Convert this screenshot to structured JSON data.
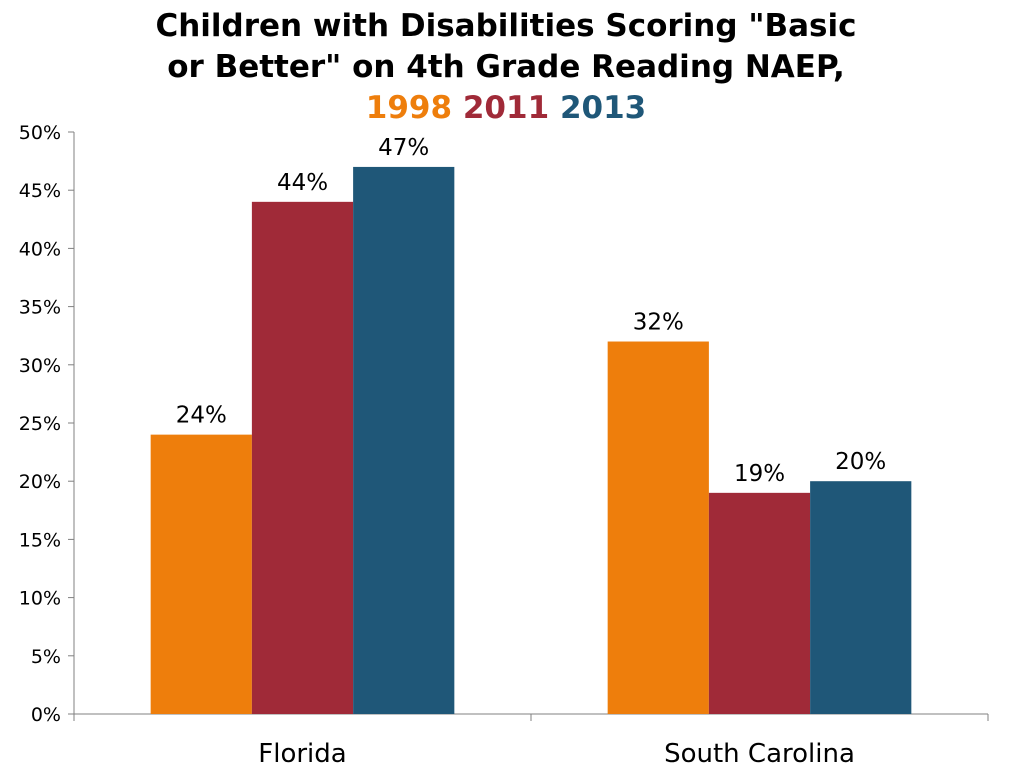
{
  "title": {
    "line1": "Children with Disabilities Scoring \"Basic",
    "line2": "or Better\" on 4th Grade Reading NAEP,",
    "years": [
      {
        "text": "1998",
        "color": "#EE7E0C"
      },
      {
        "text": "2011",
        "color": "#A02A38"
      },
      {
        "text": "2013",
        "color": "#1F5778"
      }
    ]
  },
  "chart_data": {
    "type": "bar",
    "title": "Children with Disabilities Scoring \"Basic or Better\" on 4th Grade Reading NAEP, 1998 2011 2013",
    "categories": [
      "Florida",
      "South Carolina"
    ],
    "series": [
      {
        "name": "1998",
        "color": "#EE7E0C",
        "values": [
          24,
          32
        ],
        "labels": [
          "24%",
          "32%"
        ]
      },
      {
        "name": "2011",
        "color": "#A02A38",
        "values": [
          44,
          19
        ],
        "labels": [
          "44%",
          "19%"
        ]
      },
      {
        "name": "2013",
        "color": "#1F5778",
        "values": [
          47,
          20
        ],
        "labels": [
          "47%",
          "20%"
        ]
      }
    ],
    "ylim": [
      0,
      50
    ],
    "yticks": [
      0,
      5,
      10,
      15,
      20,
      25,
      30,
      35,
      40,
      45,
      50
    ],
    "ytick_labels": [
      "0%",
      "5%",
      "10%",
      "15%",
      "20%",
      "25%",
      "30%",
      "35%",
      "40%",
      "45%",
      "50%"
    ],
    "xlabel": "",
    "ylabel": "",
    "grid": false,
    "legend": "title"
  }
}
